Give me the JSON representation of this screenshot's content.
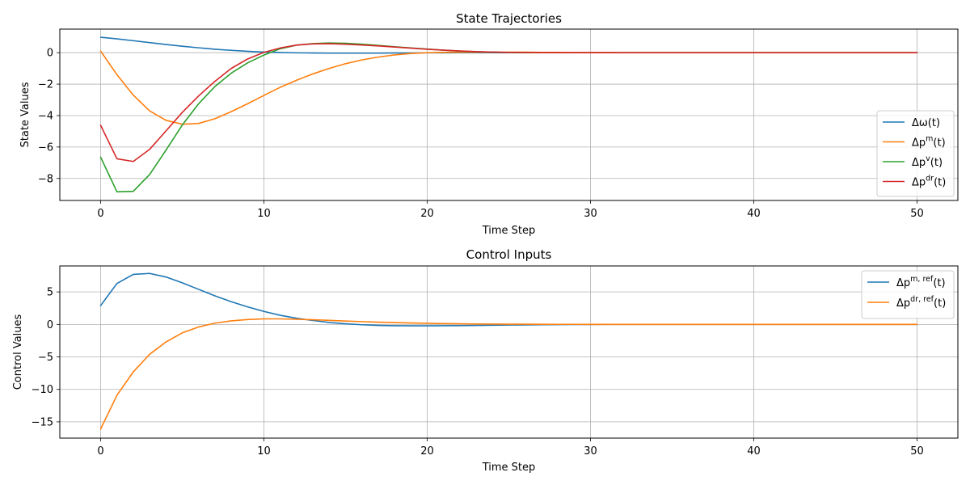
{
  "chart_data": [
    {
      "type": "line",
      "title": "State Trajectories",
      "xlabel": "Time Step",
      "ylabel": "State Values",
      "xlim": [
        -2.5,
        52.5
      ],
      "ylim": [
        -9.4,
        1.5
      ],
      "xticks": [
        0,
        10,
        20,
        30,
        40,
        50
      ],
      "yticks": [
        -8,
        -6,
        -4,
        -2,
        0
      ],
      "ytick_labels": [
        "−8",
        "−6",
        "−4",
        "−2",
        "0"
      ],
      "grid": true,
      "legend_position": "lower-right",
      "x": [
        0,
        1,
        2,
        3,
        4,
        5,
        6,
        7,
        8,
        9,
        10,
        11,
        12,
        13,
        14,
        15,
        16,
        17,
        18,
        19,
        20,
        21,
        22,
        23,
        24,
        25,
        26,
        27,
        28,
        29,
        30,
        31,
        32,
        33,
        34,
        35,
        36,
        37,
        38,
        39,
        40,
        41,
        42,
        43,
        44,
        45,
        46,
        47,
        48,
        49,
        50
      ],
      "series": [
        {
          "name": "Δω(t)",
          "legend_base": "Δω(t)",
          "legend_sup": "",
          "color": "#1f77b4",
          "values": [
            0.98,
            0.88,
            0.76,
            0.64,
            0.52,
            0.41,
            0.31,
            0.22,
            0.15,
            0.09,
            0.04,
            0.01,
            -0.01,
            -0.02,
            -0.03,
            -0.03,
            -0.03,
            -0.03,
            -0.02,
            -0.02,
            -0.01,
            -0.01,
            0.0,
            0.0,
            0.0,
            0.0,
            0.0,
            0.0,
            0.0,
            0.0,
            0.0,
            0.0,
            0.0,
            0.0,
            0.0,
            0.0,
            0.0,
            0.0,
            0.0,
            0.0,
            0.0,
            0.0,
            0.0,
            0.0,
            0.0,
            0.0,
            0.0,
            0.0,
            0.0,
            0.0,
            0.0
          ]
        },
        {
          "name": "Δp^m(t)",
          "legend_base": "Δp",
          "legend_sup": "m",
          "color": "#ff7f0e",
          "values": [
            0.1,
            -1.4,
            -2.7,
            -3.7,
            -4.3,
            -4.55,
            -4.5,
            -4.2,
            -3.75,
            -3.25,
            -2.72,
            -2.2,
            -1.75,
            -1.35,
            -1.0,
            -0.7,
            -0.46,
            -0.28,
            -0.14,
            -0.05,
            0.0,
            0.02,
            0.03,
            0.03,
            0.03,
            0.03,
            0.03,
            0.02,
            0.02,
            0.01,
            0.01,
            0.01,
            0.0,
            0.0,
            0.0,
            0.0,
            0.0,
            0.0,
            0.0,
            0.0,
            0.0,
            0.0,
            0.0,
            0.0,
            0.0,
            0.0,
            0.0,
            0.0,
            0.0,
            0.0,
            0.0
          ]
        },
        {
          "name": "Δp^v(t)",
          "legend_base": "Δp",
          "legend_sup": "v",
          "color": "#2ca02c",
          "values": [
            -6.65,
            -8.85,
            -8.82,
            -7.75,
            -6.2,
            -4.6,
            -3.25,
            -2.15,
            -1.3,
            -0.65,
            -0.15,
            0.25,
            0.48,
            0.58,
            0.62,
            0.6,
            0.54,
            0.46,
            0.38,
            0.3,
            0.23,
            0.16,
            0.1,
            0.06,
            0.03,
            0.01,
            0.0,
            0.0,
            0.0,
            0.0,
            0.0,
            0.0,
            0.0,
            0.0,
            0.0,
            0.0,
            0.0,
            0.0,
            0.0,
            0.0,
            0.0,
            0.0,
            0.0,
            0.0,
            0.0,
            0.0,
            0.0,
            0.0,
            0.0,
            0.0,
            0.0
          ]
        },
        {
          "name": "Δp^dr(t)",
          "legend_base": "Δp",
          "legend_sup": "dr",
          "color": "#d62728",
          "values": [
            -4.62,
            -6.75,
            -6.92,
            -6.15,
            -4.98,
            -3.8,
            -2.75,
            -1.82,
            -1.0,
            -0.4,
            0.02,
            0.3,
            0.48,
            0.56,
            0.57,
            0.54,
            0.49,
            0.43,
            0.36,
            0.29,
            0.22,
            0.16,
            0.11,
            0.07,
            0.04,
            0.02,
            0.01,
            0.0,
            0.0,
            0.0,
            0.0,
            0.0,
            0.0,
            0.0,
            0.0,
            0.0,
            0.0,
            0.0,
            0.0,
            0.0,
            0.0,
            0.0,
            0.0,
            0.0,
            0.0,
            0.0,
            0.0,
            0.0,
            0.0,
            0.0,
            0.0
          ]
        }
      ]
    },
    {
      "type": "line",
      "title": "Control Inputs",
      "xlabel": "Time Step",
      "ylabel": "Control Values",
      "xlim": [
        -2.5,
        52.5
      ],
      "ylim": [
        -17.5,
        9.0
      ],
      "xticks": [
        0,
        10,
        20,
        30,
        40,
        50
      ],
      "yticks": [
        -15,
        -10,
        -5,
        0,
        5
      ],
      "ytick_labels": [
        "−15",
        "−10",
        "−5",
        "0",
        "5"
      ],
      "grid": true,
      "legend_position": "upper-right",
      "x": [
        0,
        1,
        2,
        3,
        4,
        5,
        6,
        7,
        8,
        9,
        10,
        11,
        12,
        13,
        14,
        15,
        16,
        17,
        18,
        19,
        20,
        21,
        22,
        23,
        24,
        25,
        26,
        27,
        28,
        29,
        30,
        31,
        32,
        33,
        34,
        35,
        36,
        37,
        38,
        39,
        40,
        41,
        42,
        43,
        44,
        45,
        46,
        47,
        48,
        49,
        50
      ],
      "series": [
        {
          "name": "Δp^{m,ref}(t)",
          "legend_base": "Δp",
          "legend_sup": "m, ref",
          "color": "#1f77b4",
          "values": [
            2.9,
            6.3,
            7.7,
            7.85,
            7.3,
            6.4,
            5.4,
            4.4,
            3.5,
            2.7,
            2.0,
            1.4,
            0.95,
            0.6,
            0.3,
            0.1,
            -0.05,
            -0.15,
            -0.2,
            -0.22,
            -0.22,
            -0.2,
            -0.18,
            -0.15,
            -0.12,
            -0.09,
            -0.07,
            -0.05,
            -0.03,
            -0.02,
            -0.01,
            0.0,
            0.0,
            0.0,
            0.0,
            0.0,
            0.0,
            0.0,
            0.0,
            0.0,
            0.0,
            0.0,
            0.0,
            0.0,
            0.0,
            0.0,
            0.0,
            0.0,
            0.0,
            0.0,
            0.0
          ]
        },
        {
          "name": "Δp^{dr,ref}(t)",
          "legend_base": "Δp",
          "legend_sup": "dr, ref",
          "color": "#ff7f0e",
          "values": [
            -16.1,
            -10.9,
            -7.3,
            -4.6,
            -2.7,
            -1.3,
            -0.4,
            0.2,
            0.55,
            0.75,
            0.85,
            0.85,
            0.8,
            0.72,
            0.62,
            0.52,
            0.43,
            0.35,
            0.28,
            0.22,
            0.17,
            0.13,
            0.1,
            0.07,
            0.05,
            0.04,
            0.03,
            0.02,
            0.01,
            0.01,
            0.0,
            0.0,
            0.0,
            0.0,
            0.0,
            0.0,
            0.0,
            0.0,
            0.0,
            0.0,
            0.0,
            0.0,
            0.0,
            0.0,
            0.0,
            0.0,
            0.0,
            0.0,
            0.0,
            0.0,
            0.0
          ]
        }
      ]
    }
  ]
}
